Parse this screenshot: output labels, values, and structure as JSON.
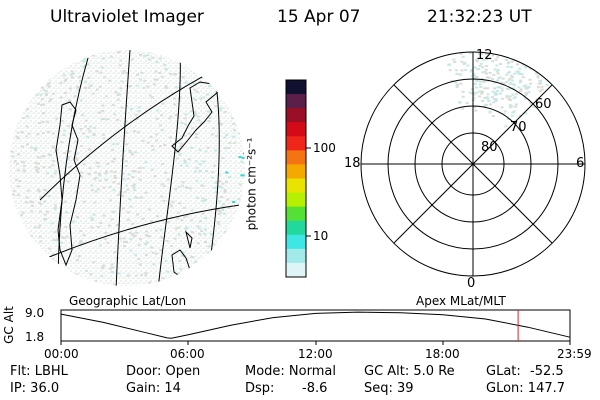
{
  "header": {
    "title": "Ultraviolet Imager",
    "date": "15 Apr 07",
    "time": "21:32:23 UT"
  },
  "geo_panel": {
    "label": "Geographic Lat/Lon"
  },
  "colorbar": {
    "unit_label": "photon cm⁻²s⁻¹",
    "tick_labels": [
      "100",
      "10"
    ],
    "colors": [
      "#101030",
      "#5a1f4a",
      "#9a0f25",
      "#d40a18",
      "#f0261a",
      "#f47414",
      "#f5a800",
      "#e8e400",
      "#b6f000",
      "#54e034",
      "#22d89c",
      "#3ee6e6",
      "#a2eaea",
      "#dff4f4"
    ]
  },
  "polar_panel": {
    "label": "Apex MLat/MLT",
    "mlt_labels": {
      "top": "12",
      "left": "18",
      "right": "6",
      "bottom": "0"
    },
    "lat_labels": [
      "80",
      "70",
      "60"
    ]
  },
  "altitude_plot": {
    "ylabel": "GC Alt",
    "ytick_labels": [
      "9.0",
      "1.8"
    ],
    "xtick_labels": [
      "00:00",
      "06:00",
      "12:00",
      "18:00",
      "23:59"
    ],
    "current_marker_time": "21:32:23"
  },
  "info": {
    "flt": "Flt: LBHL",
    "ip": "IP: 36.0",
    "door": "Door: Open",
    "gain": "Gain: 14",
    "mode": "Mode: Normal",
    "dsp": "Dsp:",
    "dsp_value": "-8.6",
    "gc_alt": "GC Alt: 5.0 Re",
    "seq": "Seq: 39",
    "glat": "GLat:",
    "glat_value": "-52.5",
    "glon": "GLon: 147.7"
  },
  "colors": {
    "speckle_light": "#c8e8e6",
    "speckle_gray": "#dadcd6",
    "speckle_bright": "#37d8d0",
    "marker": "#e02020"
  }
}
